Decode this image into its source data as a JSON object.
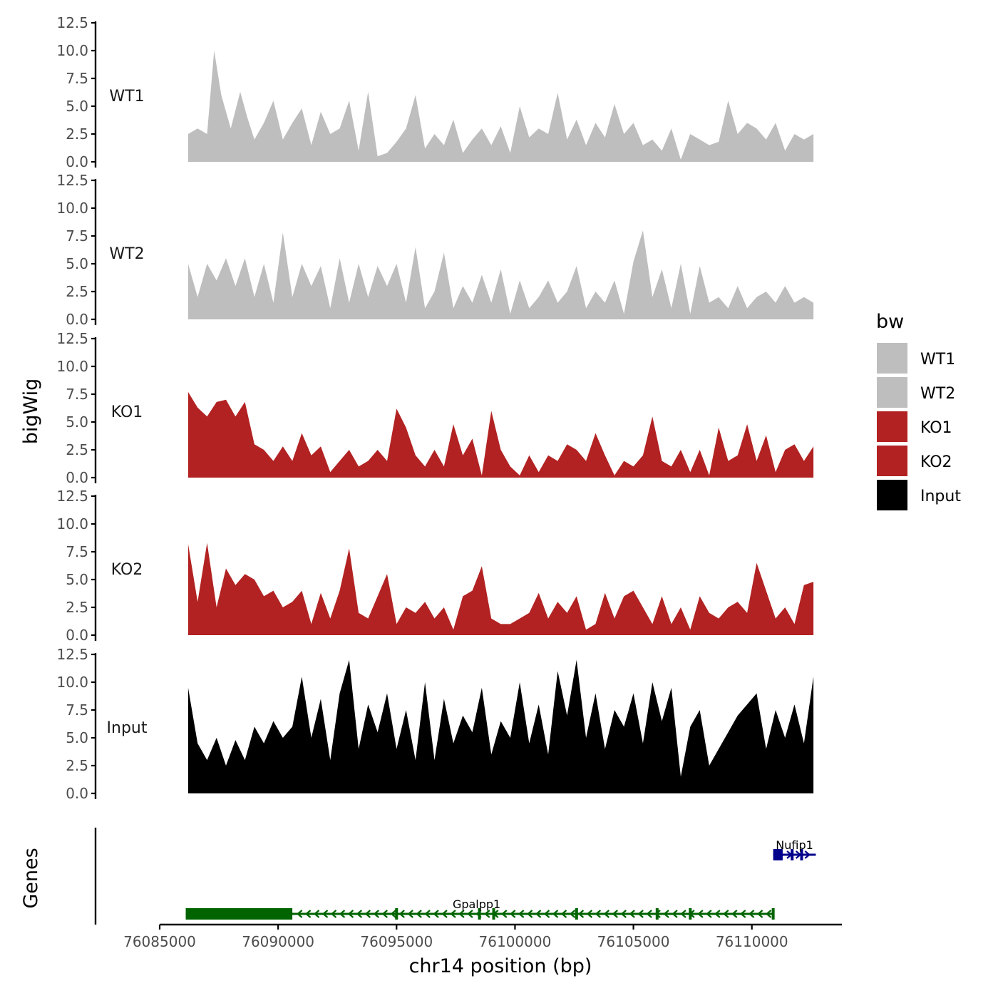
{
  "chart_data": {
    "type": "area",
    "title": "",
    "ylabel": "bigWig",
    "xlabel": "chr14 position (bp)",
    "genes_label": "Genes",
    "ylim": [
      0,
      12.5
    ],
    "xlim": [
      76085000,
      76113800
    ],
    "y_ticks": [
      "0.0",
      "2.5",
      "5.0",
      "7.5",
      "10.0",
      "12.5"
    ],
    "x_ticks": [
      {
        "value": 76085000,
        "label": "76085000"
      },
      {
        "value": 76090000,
        "label": "76090000"
      },
      {
        "value": 76095000,
        "label": "76095000"
      },
      {
        "value": 76100000,
        "label": "76100000"
      },
      {
        "value": 76105000,
        "label": "76105000"
      },
      {
        "value": 76110000,
        "label": "76110000"
      }
    ],
    "legend": {
      "title": "bw",
      "entries": [
        {
          "label": "WT1",
          "color": "#bebebe"
        },
        {
          "label": "WT2",
          "color": "#bebebe"
        },
        {
          "label": "KO1",
          "color": "#b22222"
        },
        {
          "label": "KO2",
          "color": "#b22222"
        },
        {
          "label": "Input",
          "color": "#000000"
        }
      ]
    },
    "series": [
      {
        "name": "WT1",
        "label": "WT1",
        "color": "#bebebe",
        "x": [
          76086200,
          76086600,
          76087000,
          76087300,
          76087600,
          76088000,
          76088400,
          76088700,
          76089000,
          76089400,
          76089800,
          76090200,
          76090600,
          76091000,
          76091400,
          76091800,
          76092200,
          76092600,
          76093000,
          76093400,
          76093800,
          76094200,
          76094600,
          76095000,
          76095400,
          76095800,
          76096200,
          76096600,
          76097000,
          76097400,
          76097800,
          76098200,
          76098600,
          76099000,
          76099400,
          76099800,
          76100200,
          76100600,
          76101000,
          76101400,
          76101800,
          76102200,
          76102600,
          76103000,
          76103400,
          76103800,
          76104200,
          76104600,
          76105000,
          76105400,
          76105800,
          76106200,
          76106600,
          76107000,
          76107400,
          76107800,
          76108200,
          76108600,
          76109000,
          76109400,
          76109800,
          76110200,
          76110600,
          76111000,
          76111400,
          76111800,
          76112200,
          76112600
        ],
        "values": [
          2.5,
          3.0,
          2.5,
          10.0,
          6.0,
          3.0,
          6.3,
          4.0,
          2.0,
          3.5,
          5.5,
          2.0,
          3.5,
          4.8,
          1.5,
          4.5,
          2.5,
          3.0,
          5.5,
          1.0,
          6.3,
          0.5,
          0.8,
          1.8,
          3.0,
          6.0,
          1.2,
          2.5,
          1.5,
          3.8,
          0.8,
          2.0,
          3.0,
          1.5,
          3.2,
          0.8,
          5.0,
          2.2,
          3.0,
          2.5,
          6.2,
          2.0,
          3.8,
          1.5,
          3.5,
          2.2,
          5.2,
          2.5,
          3.5,
          1.5,
          2.0,
          1.0,
          3.0,
          0.2,
          2.5,
          2.0,
          1.5,
          1.8,
          5.5,
          2.5,
          3.5,
          3.0,
          2.0,
          3.5,
          1.0,
          2.5,
          2.0,
          2.5
        ]
      },
      {
        "name": "WT2",
        "label": "WT2",
        "color": "#bebebe",
        "x": [
          76086200,
          76086600,
          76087000,
          76087400,
          76087800,
          76088200,
          76088600,
          76089000,
          76089400,
          76089800,
          76090200,
          76090600,
          76091000,
          76091400,
          76091800,
          76092200,
          76092600,
          76093000,
          76093400,
          76093800,
          76094200,
          76094600,
          76095000,
          76095400,
          76095800,
          76096200,
          76096600,
          76097000,
          76097400,
          76097800,
          76098200,
          76098600,
          76099000,
          76099400,
          76099800,
          76100200,
          76100600,
          76101000,
          76101400,
          76101800,
          76102200,
          76102600,
          76103000,
          76103400,
          76103800,
          76104200,
          76104600,
          76105000,
          76105400,
          76105800,
          76106200,
          76106600,
          76107000,
          76107400,
          76107800,
          76108200,
          76108600,
          76109000,
          76109400,
          76109800,
          76110200,
          76110600,
          76111000,
          76111400,
          76111800,
          76112200,
          76112600
        ],
        "values": [
          5.0,
          2.0,
          5.0,
          3.5,
          5.5,
          3.0,
          5.5,
          2.0,
          5.0,
          1.5,
          7.8,
          2.0,
          5.0,
          3.0,
          4.8,
          1.0,
          5.5,
          1.5,
          5.0,
          2.0,
          4.8,
          3.0,
          5.0,
          1.5,
          6.5,
          1.0,
          2.5,
          6.0,
          1.0,
          3.0,
          1.5,
          4.0,
          1.5,
          4.5,
          0.5,
          3.5,
          1.0,
          2.0,
          3.5,
          1.5,
          2.5,
          4.8,
          1.0,
          2.5,
          1.5,
          3.5,
          0.5,
          5.2,
          8.0,
          2.0,
          4.5,
          1.0,
          5.0,
          0.5,
          4.8,
          1.5,
          2.0,
          1.0,
          3.0,
          1.0,
          2.0,
          2.5,
          1.5,
          3.0,
          1.5,
          2.0,
          1.5
        ]
      },
      {
        "name": "KO1",
        "label": "KO1",
        "color": "#b22222",
        "x": [
          76086200,
          76086600,
          76087000,
          76087400,
          76087800,
          76088200,
          76088600,
          76089000,
          76089400,
          76089800,
          76090200,
          76090600,
          76091000,
          76091400,
          76091800,
          76092200,
          76092600,
          76093000,
          76093400,
          76093800,
          76094200,
          76094600,
          76095000,
          76095400,
          76095800,
          76096200,
          76096600,
          76097000,
          76097400,
          76097800,
          76098200,
          76098600,
          76099000,
          76099400,
          76099800,
          76100200,
          76100600,
          76101000,
          76101400,
          76101800,
          76102200,
          76102600,
          76103000,
          76103400,
          76103800,
          76104200,
          76104600,
          76105000,
          76105400,
          76105800,
          76106200,
          76106600,
          76107000,
          76107400,
          76107800,
          76108200,
          76108600,
          76109000,
          76109400,
          76109800,
          76110200,
          76110600,
          76111000,
          76111400,
          76111800,
          76112200,
          76112600
        ],
        "values": [
          7.7,
          6.3,
          5.5,
          6.8,
          7.0,
          5.5,
          6.8,
          3.0,
          2.5,
          1.5,
          2.8,
          1.5,
          4.0,
          2.0,
          2.8,
          0.5,
          1.5,
          2.5,
          1.0,
          1.5,
          2.5,
          1.5,
          6.2,
          4.5,
          2.0,
          1.0,
          2.5,
          1.0,
          4.8,
          2.0,
          3.5,
          0.2,
          6.0,
          2.5,
          1.0,
          0.2,
          2.0,
          0.5,
          2.0,
          1.5,
          3.0,
          2.5,
          1.5,
          4.0,
          2.0,
          0.2,
          1.5,
          1.0,
          2.0,
          5.5,
          1.5,
          1.0,
          2.5,
          0.5,
          2.5,
          0.2,
          4.5,
          1.5,
          2.0,
          4.8,
          1.5,
          3.8,
          0.5,
          2.5,
          3.0,
          1.5,
          2.8
        ]
      },
      {
        "name": "KO2",
        "label": "KO2",
        "color": "#b22222",
        "x": [
          76086200,
          76086600,
          76087000,
          76087400,
          76087800,
          76088200,
          76088600,
          76089000,
          76089400,
          76089800,
          76090200,
          76090600,
          76091000,
          76091400,
          76091800,
          76092200,
          76092600,
          76093000,
          76093400,
          76093800,
          76094200,
          76094600,
          76095000,
          76095400,
          76095800,
          76096200,
          76096600,
          76097000,
          76097400,
          76097800,
          76098200,
          76098600,
          76099000,
          76099400,
          76099800,
          76100200,
          76100600,
          76101000,
          76101400,
          76101800,
          76102200,
          76102600,
          76103000,
          76103400,
          76103800,
          76104200,
          76104600,
          76105000,
          76105400,
          76105800,
          76106200,
          76106600,
          76107000,
          76107400,
          76107800,
          76108200,
          76108600,
          76109000,
          76109400,
          76109800,
          76110200,
          76110600,
          76111000,
          76111400,
          76111800,
          76112200,
          76112600
        ],
        "values": [
          8.2,
          3.0,
          8.3,
          2.5,
          6.0,
          4.5,
          5.5,
          5.0,
          3.5,
          4.0,
          2.5,
          3.0,
          4.0,
          1.0,
          3.8,
          1.5,
          4.0,
          7.8,
          2.0,
          1.5,
          3.5,
          5.5,
          1.0,
          2.5,
          2.0,
          3.0,
          1.5,
          2.5,
          0.5,
          3.5,
          4.0,
          6.2,
          1.5,
          1.0,
          1.0,
          1.5,
          2.0,
          3.8,
          1.5,
          3.0,
          2.0,
          3.5,
          0.5,
          1.0,
          3.8,
          1.5,
          3.5,
          4.0,
          2.5,
          1.0,
          3.5,
          1.0,
          2.5,
          0.5,
          3.5,
          2.0,
          1.5,
          2.5,
          3.0,
          2.0,
          6.5,
          4.0,
          1.5,
          2.5,
          1.0,
          4.5,
          4.8
        ]
      },
      {
        "name": "Input",
        "label": "Input",
        "color": "#000000",
        "x": [
          76086200,
          76086600,
          76087000,
          76087400,
          76087800,
          76088200,
          76088600,
          76089000,
          76089400,
          76089800,
          76090200,
          76090600,
          76091000,
          76091400,
          76091800,
          76092200,
          76092600,
          76093000,
          76093400,
          76093800,
          76094200,
          76094600,
          76095000,
          76095400,
          76095800,
          76096200,
          76096600,
          76097000,
          76097400,
          76097800,
          76098200,
          76098600,
          76099000,
          76099400,
          76099800,
          76100200,
          76100600,
          76101000,
          76101400,
          76101800,
          76102200,
          76102600,
          76103000,
          76103400,
          76103800,
          76104200,
          76104600,
          76105000,
          76105400,
          76105800,
          76106200,
          76106600,
          76107000,
          76107400,
          76107800,
          76108200,
          76108600,
          76109000,
          76109400,
          76109800,
          76110200,
          76110600,
          76111000,
          76111400,
          76111800,
          76112200,
          76112600
        ],
        "values": [
          9.5,
          4.5,
          3.0,
          5.0,
          2.5,
          4.8,
          3.0,
          6.0,
          4.5,
          6.5,
          5.0,
          6.0,
          10.5,
          5.0,
          8.5,
          3.0,
          9.0,
          12.0,
          4.0,
          8.0,
          5.5,
          9.0,
          4.0,
          7.5,
          3.0,
          10.0,
          3.0,
          8.5,
          4.5,
          7.0,
          5.5,
          9.5,
          3.5,
          6.5,
          5.0,
          10.0,
          4.5,
          8.0,
          3.5,
          11.0,
          7.0,
          12.0,
          5.0,
          9.0,
          4.0,
          7.5,
          6.0,
          9.0,
          4.5,
          10.0,
          6.5,
          9.5,
          1.5,
          6.0,
          7.5,
          2.5,
          4.0,
          5.5,
          7.0,
          8.0,
          9.0,
          4.0,
          7.5,
          5.0,
          8.0,
          4.5,
          10.5
        ]
      }
    ],
    "genes": [
      {
        "name": "Gpalpp1",
        "label": "Gpalpp1",
        "strand": "-",
        "color": "#006400",
        "start": 76086100,
        "end": 76110900,
        "thick": [
          76086100,
          76090600
        ],
        "exons": [
          76095000,
          76098500,
          76099100,
          76102600,
          76106000,
          76107400,
          76110900
        ]
      },
      {
        "name": "Nufip1",
        "label": "Nufip1",
        "strand": "+",
        "color": "#00008b",
        "start": 76110900,
        "end": 76112700,
        "thick": [
          76110900,
          76111300
        ],
        "exons": [
          76111700,
          76112100
        ]
      }
    ]
  }
}
